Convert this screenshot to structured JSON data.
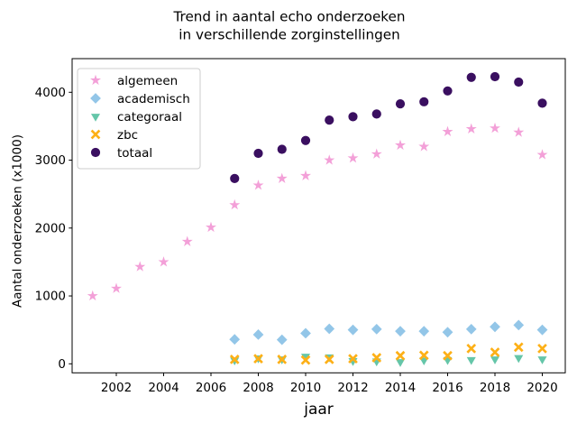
{
  "figure": {
    "background": "#ffffff"
  },
  "chart_data": {
    "type": "scatter",
    "title_line1": "Trend in aantal echo onderzoeken",
    "title_line2": "in verschillende zorginstellingen",
    "xlabel": "jaar",
    "ylabel": "Aantal onderzoeken (x1000)",
    "xticks": [
      2002,
      2004,
      2006,
      2008,
      2010,
      2012,
      2014,
      2016,
      2018,
      2020
    ],
    "yticks": [
      0,
      1000,
      2000,
      3000,
      4000
    ],
    "xlim": [
      2000,
      2021
    ],
    "ylim": [
      -215,
      4425
    ],
    "grid": false,
    "legend": {
      "position": "upper left",
      "entries": [
        "algemeen",
        "academisch",
        "categoraal",
        "zbc",
        "totaal"
      ]
    },
    "series": [
      {
        "name": "algemeen",
        "marker": "star",
        "color": "#f3a0d8",
        "x": [
          2001,
          2002,
          2003,
          2004,
          2005,
          2006,
          2007,
          2008,
          2009,
          2010,
          2011,
          2012,
          2013,
          2014,
          2015,
          2016,
          2017,
          2018,
          2019,
          2020
        ],
        "y": [
          1000,
          1110,
          1430,
          1500,
          1800,
          2010,
          2340,
          2630,
          2730,
          2770,
          3000,
          3030,
          3090,
          3220,
          3200,
          3420,
          3460,
          3470,
          3410,
          3080
        ]
      },
      {
        "name": "academisch",
        "marker": "diamond",
        "color": "#93c6e8",
        "x": [
          2007,
          2008,
          2009,
          2010,
          2011,
          2012,
          2013,
          2014,
          2015,
          2016,
          2017,
          2018,
          2019,
          2020
        ],
        "y": [
          360,
          430,
          355,
          450,
          515,
          500,
          510,
          480,
          480,
          465,
          510,
          545,
          570,
          500
        ]
      },
      {
        "name": "categoraal",
        "marker": "triangle-down",
        "color": "#65c6a9",
        "x": [
          2007,
          2008,
          2009,
          2010,
          2011,
          2012,
          2013,
          2014,
          2015,
          2016,
          2017,
          2018,
          2019,
          2020
        ],
        "y": [
          55,
          85,
          70,
          110,
          100,
          45,
          40,
          30,
          55,
          60,
          60,
          70,
          90,
          70
        ]
      },
      {
        "name": "zbc",
        "marker": "x",
        "color": "#fdb017",
        "x": [
          2007,
          2008,
          2009,
          2010,
          2011,
          2012,
          2013,
          2014,
          2015,
          2016,
          2017,
          2018,
          2019,
          2020
        ],
        "y": [
          65,
          75,
          65,
          55,
          65,
          75,
          90,
          120,
          125,
          120,
          225,
          170,
          245,
          225
        ]
      },
      {
        "name": "totaal",
        "marker": "circle",
        "color": "#3a0f60",
        "x": [
          2007,
          2008,
          2009,
          2010,
          2011,
          2012,
          2013,
          2014,
          2015,
          2016,
          2017,
          2018,
          2019,
          2020
        ],
        "y": [
          2730,
          3100,
          3160,
          3290,
          3590,
          3640,
          3680,
          3830,
          3860,
          4020,
          4220,
          4230,
          4150,
          3840
        ]
      }
    ]
  }
}
